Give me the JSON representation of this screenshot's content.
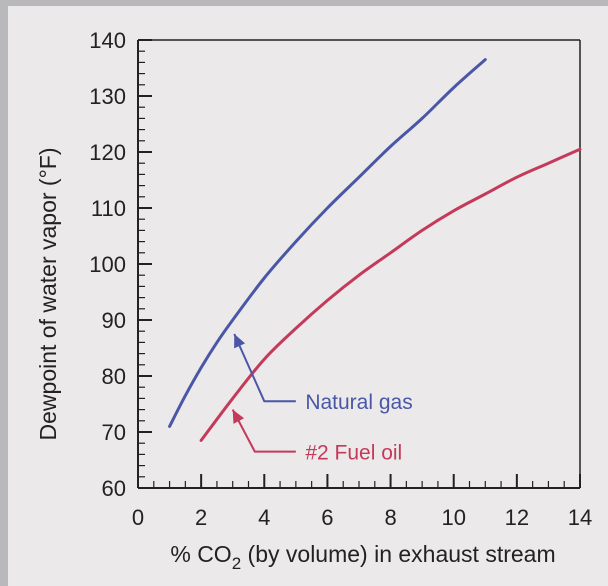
{
  "chart_data": {
    "type": "line",
    "title": "",
    "xlabel_prefix": "% CO",
    "xlabel_sub": "2",
    "xlabel_suffix": " (by volume) in exhaust stream",
    "ylabel": "Dewpoint of water vapor (°F)",
    "xlim": [
      0,
      14
    ],
    "ylim": [
      60,
      140
    ],
    "xticks": [
      0,
      2,
      4,
      6,
      8,
      10,
      12,
      14
    ],
    "yticks": [
      60,
      70,
      80,
      90,
      100,
      110,
      120,
      130,
      140
    ],
    "grid": false,
    "series": [
      {
        "name": "Natural gas",
        "color": "#4a57a6",
        "x": [
          1.0,
          1.5,
          2.0,
          2.5,
          3.0,
          4.0,
          5.0,
          6.0,
          7.0,
          8.0,
          9.0,
          10.0,
          11.0
        ],
        "y": [
          71,
          76.5,
          81.5,
          86,
          90,
          97.5,
          104,
          110,
          115.5,
          121,
          126,
          131.5,
          136.5
        ]
      },
      {
        "name": "#2 Fuel oil",
        "color": "#c43a5a",
        "x": [
          2.0,
          3.0,
          4.0,
          5.0,
          6.0,
          7.0,
          8.0,
          9.0,
          10.0,
          11.0,
          12.0,
          13.0,
          14.0
        ],
        "y": [
          68.5,
          76,
          83,
          88.5,
          93.5,
          98,
          102,
          106,
          109.5,
          112.5,
          115.5,
          118,
          120.5
        ]
      }
    ],
    "annotations": [
      {
        "label": "Natural gas",
        "series": 0
      },
      {
        "label": "#2 Fuel oil",
        "series": 1
      }
    ]
  }
}
